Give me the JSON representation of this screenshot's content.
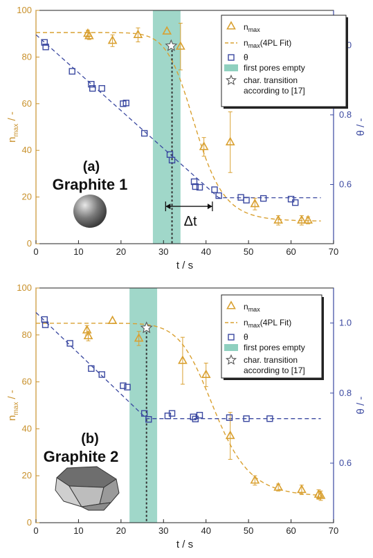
{
  "colors": {
    "nmax": "#d9a030",
    "theta": "#3a48a0",
    "band": "#8fd0bf",
    "right_axis": "#3a48a0",
    "left_axis": "#c8902a"
  },
  "panel_a_title": "(a)",
  "panel_a_name": "Graphite 1",
  "panel_b_title": "(b)",
  "panel_b_name": "Graphite 2",
  "delta_t_label": "Δt",
  "left_axis_label": "n",
  "left_axis_sub": "max",
  "left_axis_unit": " / -",
  "right_axis_label": "θ / -",
  "x_axis_label": "t / s",
  "legend": {
    "nmax": "n",
    "nmax_sub": "max",
    "fit": "n",
    "fit_sub": "max",
    "fit_suffix": "(4PL Fit)",
    "theta": "θ",
    "band": "first pores empty",
    "star_line1": "char. transition",
    "star_line2": "according to [17]"
  },
  "chart_data": [
    {
      "type": "scatter",
      "panel": "(a) Graphite 1",
      "xlabel": "t / s",
      "ylabel": "n_max / -",
      "y2label": "θ / -",
      "xlim": [
        0,
        70
      ],
      "ylim": [
        0,
        100
      ],
      "y2lim": [
        0.43,
        1.1
      ],
      "xticks": [
        0,
        10,
        20,
        30,
        40,
        50,
        60,
        70
      ],
      "yticks": [
        0,
        20,
        40,
        60,
        80,
        100
      ],
      "y2ticks": [
        0.6,
        0.8,
        1.0
      ],
      "band": [
        27.5,
        34
      ],
      "transition_x": 32,
      "star": [
        31.8,
        84.8
      ],
      "delta_t": [
        30.5,
        41.5
      ],
      "delta_t_y": 16,
      "series": [
        {
          "name": "n_max",
          "axis": "left",
          "marker": "triangle",
          "x": [
            12.2,
            12.5,
            18,
            24,
            30.8,
            34,
            39.5,
            45.7,
            51.5,
            57,
            62.5,
            64
          ],
          "y": [
            90,
            89,
            87,
            89.5,
            91,
            84.5,
            41.5,
            43.5,
            17,
            10,
            10,
            10
          ],
          "err": [
            1.5,
            1.5,
            2.5,
            3,
            0,
            10,
            4,
            13,
            2.5,
            2,
            2,
            1.5
          ]
        },
        {
          "name": "n_max (4PL Fit)",
          "axis": "left",
          "type": "line",
          "fit": {
            "top": 90.5,
            "bottom": 9.6,
            "x0": 37.5,
            "hill": 11
          }
        },
        {
          "name": "θ",
          "axis": "right",
          "marker": "square",
          "x": [
            2,
            2.3,
            8.5,
            13,
            13.3,
            15.5,
            20.5,
            21.2,
            25.5,
            31.5,
            32,
            37.2,
            37.5,
            38.5,
            42,
            43,
            48.2,
            49.5,
            53.5,
            60,
            61
          ],
          "y": [
            1.008,
            0.995,
            0.925,
            0.888,
            0.876,
            0.876,
            0.832,
            0.834,
            0.747,
            0.686,
            0.67,
            0.608,
            0.594,
            0.592,
            0.585,
            0.568,
            0.563,
            0.555,
            0.56,
            0.558,
            0.548
          ]
        },
        {
          "name": "θ fit",
          "axis": "right",
          "type": "line",
          "x": [
            0,
            43,
            67
          ],
          "y": [
            1.03,
            0.562,
            0.562
          ]
        }
      ]
    },
    {
      "type": "scatter",
      "panel": "(b) Graphite 2",
      "xlabel": "t / s",
      "ylabel": "n_max / -",
      "y2label": "θ / -",
      "xlim": [
        0,
        70
      ],
      "ylim": [
        0,
        100
      ],
      "y2lim": [
        0.43,
        1.1
      ],
      "xticks": [
        0,
        10,
        20,
        30,
        40,
        50,
        60,
        70
      ],
      "yticks": [
        0,
        20,
        40,
        60,
        80,
        100
      ],
      "y2ticks": [
        0.6,
        0.8,
        1.0
      ],
      "band": [
        22,
        28.5
      ],
      "transition_x": 26,
      "star": [
        26,
        83
      ],
      "series": [
        {
          "name": "n_max",
          "axis": "left",
          "marker": "triangle",
          "x": [
            12,
            12.3,
            18,
            24.2,
            34.5,
            40,
            45.7,
            51.5,
            57,
            62.5,
            66.5,
            67
          ],
          "y": [
            82,
            79.5,
            86,
            78.5,
            69,
            63,
            37,
            18,
            15,
            14,
            12,
            11.5
          ],
          "err": [
            2,
            2,
            0,
            3,
            10,
            5,
            10,
            2,
            1.5,
            2,
            2,
            2
          ]
        },
        {
          "name": "n_max (4PL Fit)",
          "axis": "left",
          "type": "line",
          "fit": {
            "top": 85,
            "bottom": 11,
            "x0": 42,
            "hill": 10
          }
        },
        {
          "name": "θ",
          "axis": "right",
          "marker": "square",
          "x": [
            2,
            2.2,
            8,
            13,
            15.5,
            20.5,
            21.5,
            25.5,
            26.5,
            31,
            32,
            37,
            37.5,
            38.5,
            45.5,
            49.5,
            55
          ],
          "y": [
            1.01,
            0.995,
            0.942,
            0.87,
            0.853,
            0.821,
            0.817,
            0.742,
            0.725,
            0.735,
            0.742,
            0.732,
            0.726,
            0.737,
            0.73,
            0.727,
            0.727
          ]
        },
        {
          "name": "θ fit",
          "axis": "right",
          "type": "line",
          "x": [
            0,
            26,
            67
          ],
          "y": [
            1.03,
            0.727,
            0.727
          ]
        }
      ]
    }
  ]
}
